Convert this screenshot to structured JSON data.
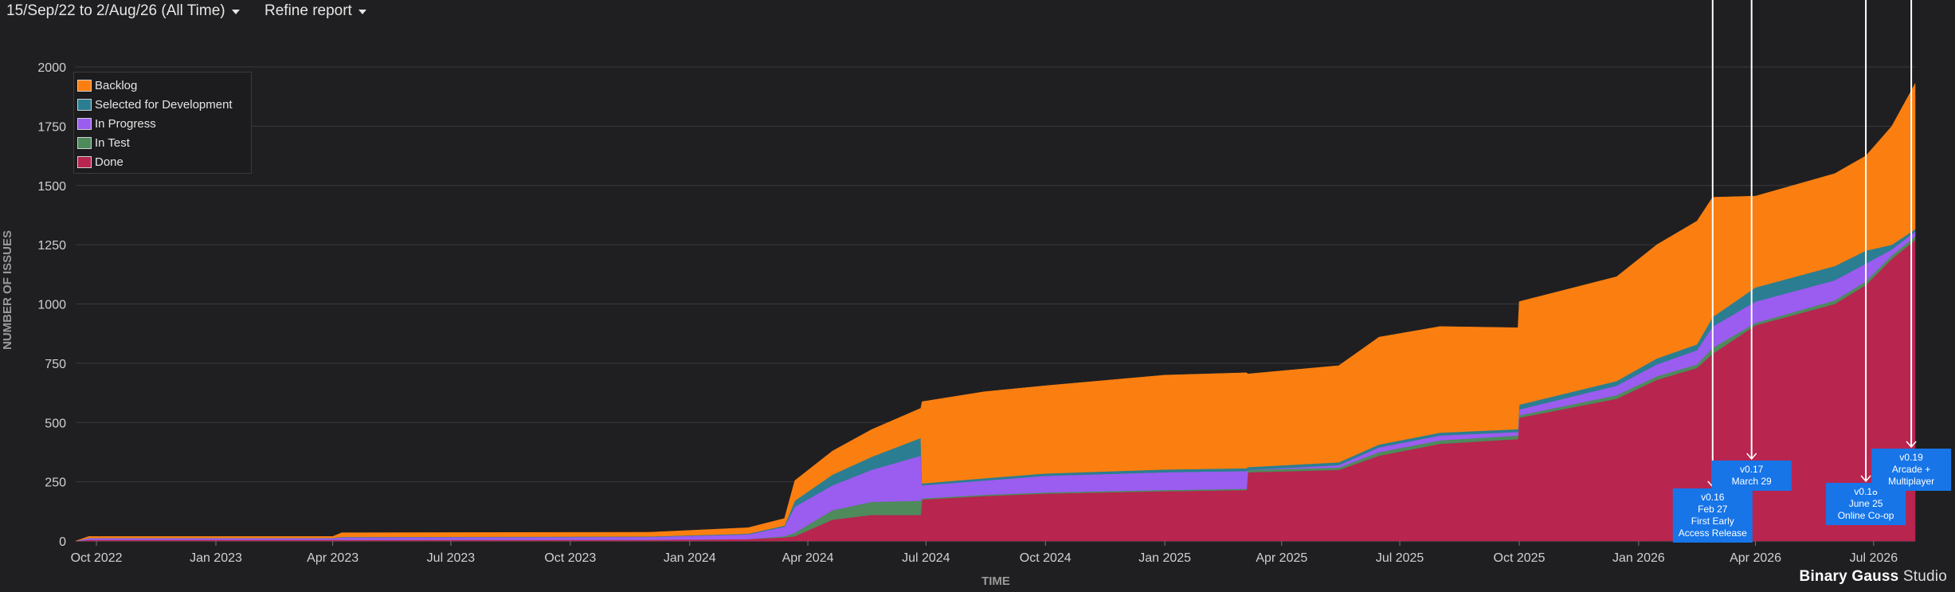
{
  "toolbar": {
    "date_range": "15/Sep/22 to 2/Aug/26 (All Time)",
    "refine": "Refine report"
  },
  "watermark": {
    "part1": "Binary Gauss",
    "part2": "Studio"
  },
  "chart_data": {
    "type": "area",
    "stacked": true,
    "xlabel": "TIME",
    "ylabel": "NUMBER OF ISSUES",
    "ylim": [
      0,
      2000
    ],
    "yticks": [
      0,
      250,
      500,
      750,
      1000,
      1250,
      1500,
      1750,
      2000
    ],
    "xlim": [
      "2022-09-15",
      "2026-08-02"
    ],
    "xticks": [
      {
        "date": "2022-10-01",
        "label": "Oct 2022"
      },
      {
        "date": "2023-01-01",
        "label": "Jan 2023"
      },
      {
        "date": "2023-04-01",
        "label": "Apr 2023"
      },
      {
        "date": "2023-07-01",
        "label": "Jul 2023"
      },
      {
        "date": "2023-10-01",
        "label": "Oct 2023"
      },
      {
        "date": "2024-01-01",
        "label": "Jan 2024"
      },
      {
        "date": "2024-04-01",
        "label": "Apr 2024"
      },
      {
        "date": "2024-07-01",
        "label": "Jul 2024"
      },
      {
        "date": "2024-10-01",
        "label": "Oct 2024"
      },
      {
        "date": "2025-01-01",
        "label": "Jan 2025"
      },
      {
        "date": "2025-04-01",
        "label": "Apr 2025"
      },
      {
        "date": "2025-07-01",
        "label": "Jul 2025"
      },
      {
        "date": "2025-10-01",
        "label": "Oct 2025"
      },
      {
        "date": "2026-01-01",
        "label": "Jan 2026"
      },
      {
        "date": "2026-04-01",
        "label": "Apr 2026"
      },
      {
        "date": "2026-07-01",
        "label": "Jul 2026"
      }
    ],
    "grid": true,
    "legend_position": "top-left",
    "x": [
      "2022-09-15",
      "2022-09-25",
      "2023-04-01",
      "2023-04-08",
      "2023-12-01",
      "2024-02-15",
      "2024-03-14",
      "2024-03-22",
      "2024-04-20",
      "2024-05-20",
      "2024-06-27",
      "2024-06-28",
      "2024-08-15",
      "2024-10-01",
      "2025-01-01",
      "2025-03-05",
      "2025-03-06",
      "2025-05-15",
      "2025-06-15",
      "2025-08-01",
      "2025-09-30",
      "2025-10-01",
      "2025-12-15",
      "2026-01-15",
      "2026-02-15",
      "2026-02-27",
      "2026-04-01",
      "2026-06-01",
      "2026-06-25",
      "2026-07-15",
      "2026-08-02"
    ],
    "series": [
      {
        "name": "Done",
        "color": "#b8254f",
        "values": [
          0,
          5,
          5,
          5,
          5,
          8,
          15,
          20,
          90,
          110,
          110,
          175,
          190,
          200,
          210,
          215,
          290,
          300,
          360,
          410,
          430,
          520,
          600,
          680,
          730,
          790,
          910,
          1000,
          1080,
          1190,
          1270
        ]
      },
      {
        "name": "In Test",
        "color": "#4e8a5c",
        "values": [
          0,
          0,
          0,
          0,
          0,
          0,
          5,
          15,
          40,
          55,
          60,
          5,
          5,
          5,
          5,
          5,
          10,
          10,
          15,
          15,
          15,
          10,
          15,
          15,
          15,
          25,
          10,
          15,
          15,
          15,
          15
        ]
      },
      {
        "name": "In Progress",
        "color": "#9b5cf0",
        "values": [
          0,
          7,
          7,
          10,
          12,
          20,
          40,
          110,
          105,
          135,
          190,
          55,
          60,
          70,
          75,
          75,
          0,
          10,
          20,
          20,
          15,
          25,
          40,
          50,
          60,
          90,
          90,
          85,
          75,
          25,
          20
        ]
      },
      {
        "name": "Selected for Development",
        "color": "#2b7e91",
        "values": [
          0,
          1,
          1,
          2,
          2,
          3,
          5,
          25,
          45,
          55,
          75,
          8,
          10,
          10,
          12,
          12,
          12,
          12,
          12,
          12,
          12,
          20,
          20,
          25,
          25,
          40,
          60,
          60,
          55,
          20,
          10
        ]
      },
      {
        "name": "Backlog",
        "color": "#fb7f10",
        "values": [
          0,
          6,
          6,
          18,
          18,
          25,
          30,
          85,
          100,
          115,
          125,
          345,
          365,
          370,
          398,
          403,
          393,
          408,
          453,
          448,
          428,
          435,
          440,
          480,
          520,
          505,
          385,
          390,
          400,
          500,
          615
        ]
      }
    ],
    "annotations": [
      {
        "date": "2026-02-27",
        "lines": [
          "v0.16",
          "Feb 27",
          "First Early",
          "Access Release"
        ]
      },
      {
        "date": "2026-03-29",
        "lines": [
          "v0.17",
          "March 29"
        ]
      },
      {
        "date": "2026-06-25",
        "lines": [
          "v0.18",
          "June 25",
          "Online Co-op"
        ]
      },
      {
        "date": "2026-07-30",
        "lines": [
          "v0.19",
          "Arcade +",
          "Multiplayer"
        ]
      }
    ]
  }
}
